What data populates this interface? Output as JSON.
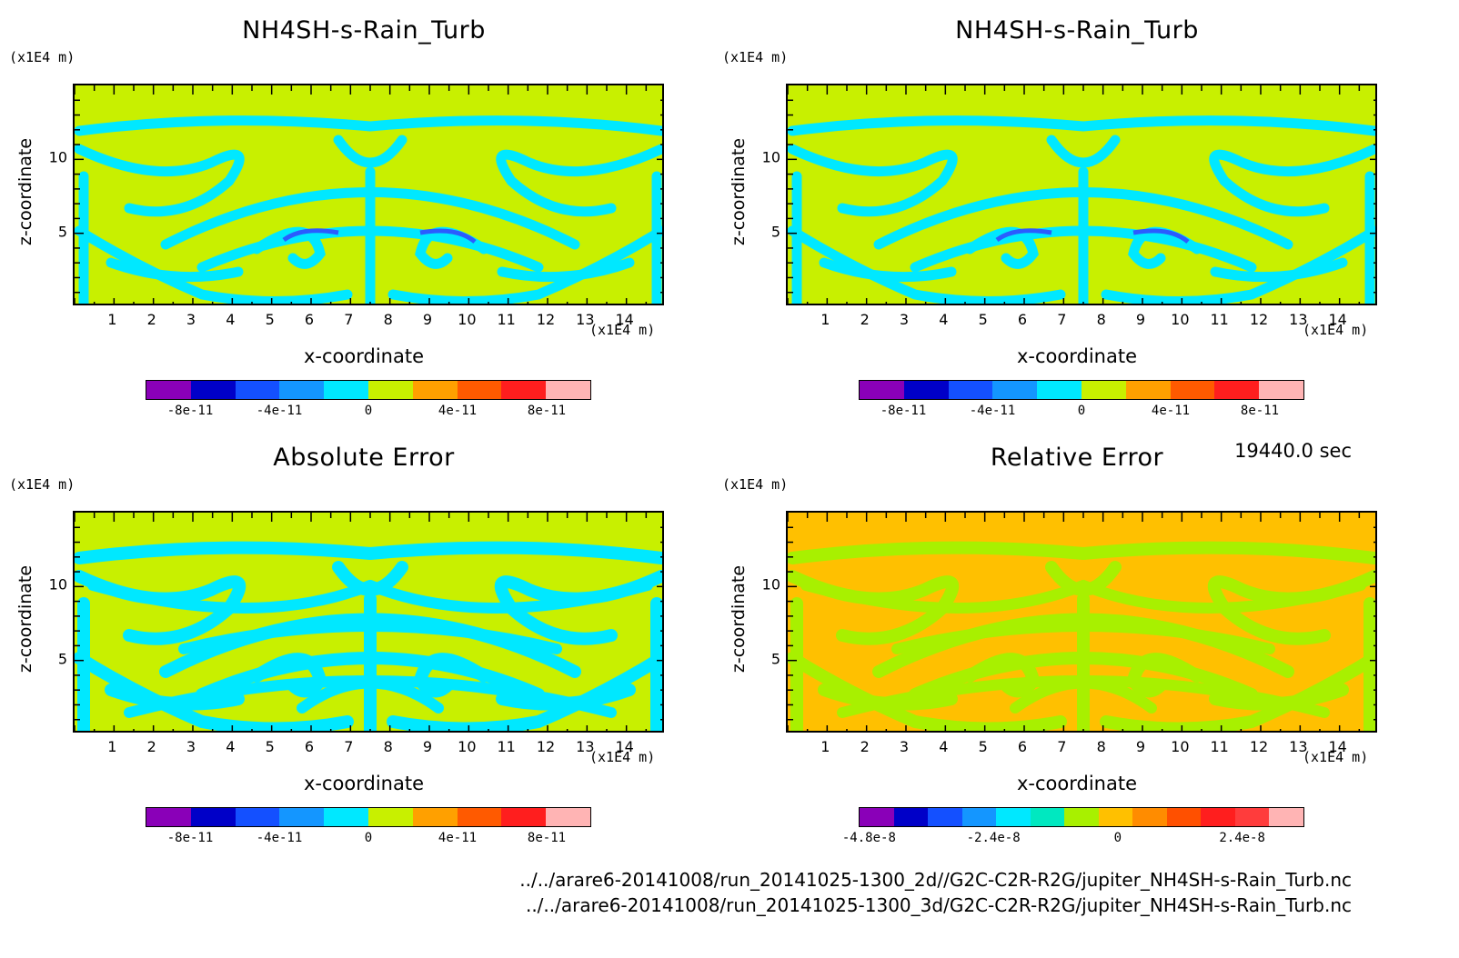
{
  "time_label": "19440.0 sec",
  "file_paths": [
    "../../arare6-20141008/run_20141025-1300_2d//G2C-C2R-R2G/jupiter_NH4SH-s-Rain_Turb.nc",
    "../../arare6-20141008/run_20141025-1300_3d/G2C-C2R-R2G/jupiter_NH4SH-s-Rain_Turb.nc"
  ],
  "colors": {
    "bg_green": "#c8f000",
    "cyan": "#00e8ff",
    "blue": "#2a5cff",
    "orange": "#ffc000",
    "green2": "#a8f000"
  },
  "chart_data": [
    {
      "type": "heatmap",
      "title": "NH4SH-s-Rain_Turb",
      "xlabel": "x-coordinate",
      "ylabel": "z-coordinate",
      "x_unit": "(x1E4 m)",
      "z_unit": "(x1E4 m)",
      "xlim": [
        0,
        15
      ],
      "ylim": [
        0,
        15
      ],
      "x_ticks": [
        "1",
        "2",
        "3",
        "4",
        "5",
        "6",
        "7",
        "8",
        "9",
        "10",
        "11",
        "12",
        "13",
        "14"
      ],
      "y_ticks": [
        "5",
        "10"
      ],
      "colorbar": {
        "colors": [
          "#8a00b8",
          "#0000c8",
          "#1450ff",
          "#1496ff",
          "#00e8ff",
          "#c8f000",
          "#ffa000",
          "#ff5a00",
          "#ff1e1e",
          "#ffb4b4"
        ],
        "tick_labels": [
          "-8e-11",
          "-4e-11",
          "0",
          "4e-11",
          "8e-11"
        ],
        "tick_values": [
          -8e-11,
          -4e-11,
          0,
          4e-11,
          8e-11
        ],
        "range": [
          -1e-10,
          1e-10
        ]
      }
    },
    {
      "type": "heatmap",
      "title": "NH4SH-s-Rain_Turb",
      "xlabel": "x-coordinate",
      "ylabel": "z-coordinate",
      "x_unit": "(x1E4 m)",
      "z_unit": "(x1E4 m)",
      "xlim": [
        0,
        15
      ],
      "ylim": [
        0,
        15
      ],
      "x_ticks": [
        "1",
        "2",
        "3",
        "4",
        "5",
        "6",
        "7",
        "8",
        "9",
        "10",
        "11",
        "12",
        "13",
        "14"
      ],
      "y_ticks": [
        "5",
        "10"
      ],
      "colorbar": {
        "colors": [
          "#8a00b8",
          "#0000c8",
          "#1450ff",
          "#1496ff",
          "#00e8ff",
          "#c8f000",
          "#ffa000",
          "#ff5a00",
          "#ff1e1e",
          "#ffb4b4"
        ],
        "tick_labels": [
          "-8e-11",
          "-4e-11",
          "0",
          "4e-11",
          "8e-11"
        ],
        "tick_values": [
          -8e-11,
          -4e-11,
          0,
          4e-11,
          8e-11
        ],
        "range": [
          -1e-10,
          1e-10
        ]
      }
    },
    {
      "type": "heatmap",
      "title": "Absolute Error",
      "xlabel": "x-coordinate",
      "ylabel": "z-coordinate",
      "x_unit": "(x1E4 m)",
      "z_unit": "(x1E4 m)",
      "xlim": [
        0,
        15
      ],
      "ylim": [
        0,
        15
      ],
      "x_ticks": [
        "1",
        "2",
        "3",
        "4",
        "5",
        "6",
        "7",
        "8",
        "9",
        "10",
        "11",
        "12",
        "13",
        "14"
      ],
      "y_ticks": [
        "5",
        "10"
      ],
      "colorbar": {
        "colors": [
          "#8a00b8",
          "#0000c8",
          "#1450ff",
          "#1496ff",
          "#00e8ff",
          "#c8f000",
          "#ffa000",
          "#ff5a00",
          "#ff1e1e",
          "#ffb4b4"
        ],
        "tick_labels": [
          "-8e-11",
          "-4e-11",
          "0",
          "4e-11",
          "8e-11"
        ],
        "tick_values": [
          -8e-11,
          -4e-11,
          0,
          4e-11,
          8e-11
        ],
        "range": [
          -1e-10,
          1e-10
        ]
      }
    },
    {
      "type": "heatmap",
      "title": "Relative Error",
      "xlabel": "x-coordinate",
      "ylabel": "z-coordinate",
      "x_unit": "(x1E4 m)",
      "z_unit": "(x1E4 m)",
      "xlim": [
        0,
        15
      ],
      "ylim": [
        0,
        15
      ],
      "x_ticks": [
        "1",
        "2",
        "3",
        "4",
        "5",
        "6",
        "7",
        "8",
        "9",
        "10",
        "11",
        "12",
        "13",
        "14"
      ],
      "y_ticks": [
        "5",
        "10"
      ],
      "colorbar": {
        "colors": [
          "#8a00b8",
          "#0000c8",
          "#1450ff",
          "#1496ff",
          "#00e8ff",
          "#00e8c0",
          "#a8f000",
          "#ffc000",
          "#ff8c00",
          "#ff5000",
          "#ff1e1e",
          "#ff3c3c",
          "#ffb4b4"
        ],
        "tick_labels": [
          "-4.8e-8",
          "-2.4e-8",
          "0",
          "2.4e-8"
        ],
        "tick_values": [
          -4.8e-08,
          -2.4e-08,
          0,
          2.4e-08
        ],
        "range": [
          -5e-08,
          3.6e-08
        ]
      }
    }
  ]
}
